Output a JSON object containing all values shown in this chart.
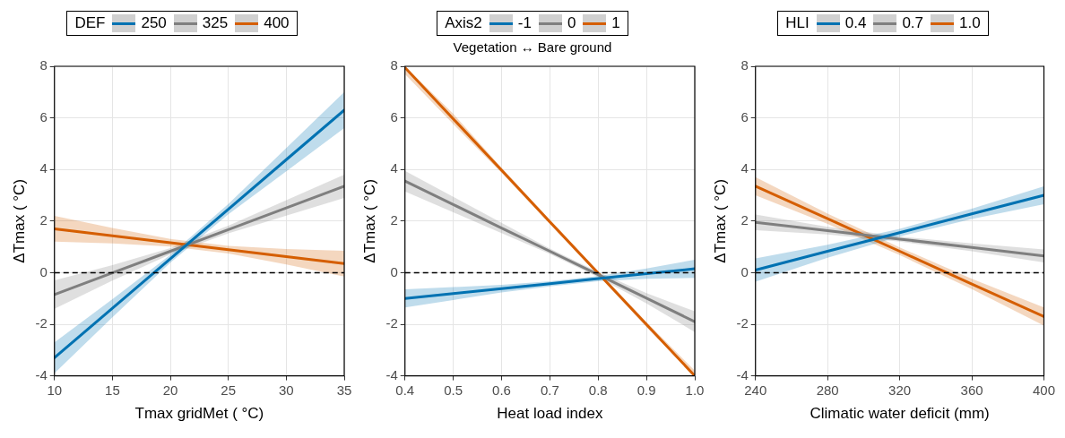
{
  "chart_data": [
    {
      "type": "line",
      "xlabel": "Tmax gridMet ( °C)",
      "ylabel": "ΔTmax ( °C)",
      "legend_title": "DEF",
      "legend": "top",
      "grid": true,
      "line_style": "solid",
      "marker": "none",
      "x": [
        10,
        15,
        20,
        25,
        30,
        35
      ],
      "xlim": [
        10,
        35
      ],
      "xticks": [
        10,
        15,
        20,
        25,
        30,
        35
      ],
      "ylim": [
        -4,
        8
      ],
      "yticks": [
        -4,
        -2,
        0,
        2,
        4,
        6,
        8
      ],
      "ref_lines": [
        {
          "axis": "y",
          "value": 0,
          "color": "#000000",
          "line_style": "dashed"
        }
      ],
      "series": [
        {
          "name": "250",
          "color": "#0072b2",
          "values": [
            -3.3,
            -1.38,
            0.54,
            2.46,
            4.38,
            6.3
          ],
          "lower": [
            -3.9,
            -1.73,
            0.39,
            2.26,
            3.93,
            5.6
          ],
          "upper": [
            -2.7,
            -1.03,
            0.69,
            2.66,
            4.83,
            7.0
          ]
        },
        {
          "name": "325",
          "color": "#7f7f7f",
          "values": [
            -0.85,
            -0.01,
            0.83,
            1.67,
            2.51,
            3.35
          ],
          "lower": [
            -1.4,
            -0.31,
            0.71,
            1.52,
            2.21,
            2.9
          ],
          "upper": [
            -0.3,
            0.29,
            0.95,
            1.82,
            2.81,
            3.8
          ]
        },
        {
          "name": "400",
          "color": "#d55e00",
          "values": [
            1.7,
            1.43,
            1.16,
            0.89,
            0.62,
            0.35
          ],
          "lower": [
            1.2,
            1.13,
            1.01,
            0.74,
            0.32,
            -0.15
          ],
          "upper": [
            2.2,
            1.73,
            1.31,
            1.04,
            0.92,
            0.85
          ]
        }
      ]
    },
    {
      "type": "line",
      "xlabel": "Heat load index",
      "ylabel": "ΔTmax ( °C)",
      "legend_title": "Axis2",
      "subtitle": "Vegetation ↔ Bare ground",
      "legend": "top",
      "grid": true,
      "line_style": "solid",
      "marker": "none",
      "x": [
        0.4,
        0.5,
        0.6,
        0.7,
        0.8,
        0.9,
        1.0
      ],
      "xlim": [
        0.4,
        1.0
      ],
      "xticks": [
        0.4,
        0.5,
        0.6,
        0.7,
        0.8,
        0.9,
        {
          "value": 1.0,
          "label": "1.0"
        }
      ],
      "ylim": [
        -4,
        8
      ],
      "yticks": [
        -4,
        -2,
        0,
        2,
        4,
        6,
        8
      ],
      "ref_lines": [
        {
          "axis": "y",
          "value": 0,
          "color": "#000000",
          "line_style": "dashed"
        }
      ],
      "series": [
        {
          "name": "-1",
          "color": "#0072b2",
          "values": [
            -1.0,
            -0.81,
            -0.62,
            -0.43,
            -0.23,
            -0.04,
            0.15
          ],
          "lower": [
            -1.35,
            -1.06,
            -0.77,
            -0.53,
            -0.33,
            -0.24,
            -0.2
          ],
          "upper": [
            -0.65,
            -0.56,
            -0.47,
            -0.33,
            -0.13,
            0.16,
            0.5
          ]
        },
        {
          "name": "0",
          "color": "#7f7f7f",
          "values": [
            3.55,
            2.64,
            1.73,
            0.83,
            -0.08,
            -0.99,
            -1.9
          ],
          "lower": [
            3.15,
            2.34,
            1.53,
            0.73,
            -0.18,
            -1.19,
            -2.3
          ],
          "upper": [
            3.95,
            2.94,
            1.93,
            0.93,
            0.02,
            -0.79,
            -1.5
          ]
        },
        {
          "name": "1",
          "color": "#d55e00",
          "values": [
            7.95,
            5.96,
            3.97,
            1.97,
            -0.02,
            -2.01,
            -4.0
          ],
          "lower": [
            7.7,
            5.76,
            3.87,
            1.89,
            -0.1,
            -2.11,
            -4.0
          ],
          "upper": [
            8.0,
            6.16,
            4.07,
            2.05,
            0.06,
            -1.91,
            -3.8
          ]
        }
      ]
    },
    {
      "type": "line",
      "xlabel": "Climatic water deficit (mm)",
      "ylabel": "ΔTmax ( °C)",
      "legend_title": "HLI",
      "legend": "top",
      "grid": true,
      "line_style": "solid",
      "marker": "none",
      "x": [
        240,
        280,
        320,
        360,
        400
      ],
      "xlim": [
        240,
        400
      ],
      "xticks": [
        240,
        280,
        320,
        360,
        400
      ],
      "ylim": [
        -4,
        8
      ],
      "yticks": [
        -4,
        -2,
        0,
        2,
        4,
        6,
        8
      ],
      "ref_lines": [
        {
          "axis": "y",
          "value": 0,
          "color": "#000000",
          "line_style": "dashed"
        }
      ],
      "series": [
        {
          "name": "0.4",
          "color": "#0072b2",
          "values": [
            0.1,
            0.83,
            1.55,
            2.28,
            3.0
          ],
          "lower": [
            -0.35,
            0.58,
            1.4,
            2.08,
            2.65
          ],
          "upper": [
            0.55,
            1.08,
            1.7,
            2.48,
            3.35
          ]
        },
        {
          "name": "0.7",
          "color": "#7f7f7f",
          "values": [
            1.95,
            1.63,
            1.3,
            0.98,
            0.65
          ],
          "lower": [
            1.65,
            1.48,
            1.2,
            0.83,
            0.4
          ],
          "upper": [
            2.25,
            1.78,
            1.4,
            1.13,
            0.9
          ]
        },
        {
          "name": "1.0",
          "color": "#d55e00",
          "values": [
            3.35,
            2.09,
            0.83,
            -0.44,
            -1.7
          ],
          "lower": [
            3.0,
            1.89,
            0.68,
            -0.64,
            -2.05
          ],
          "upper": [
            3.7,
            2.29,
            0.98,
            -0.24,
            -1.35
          ]
        }
      ]
    }
  ]
}
